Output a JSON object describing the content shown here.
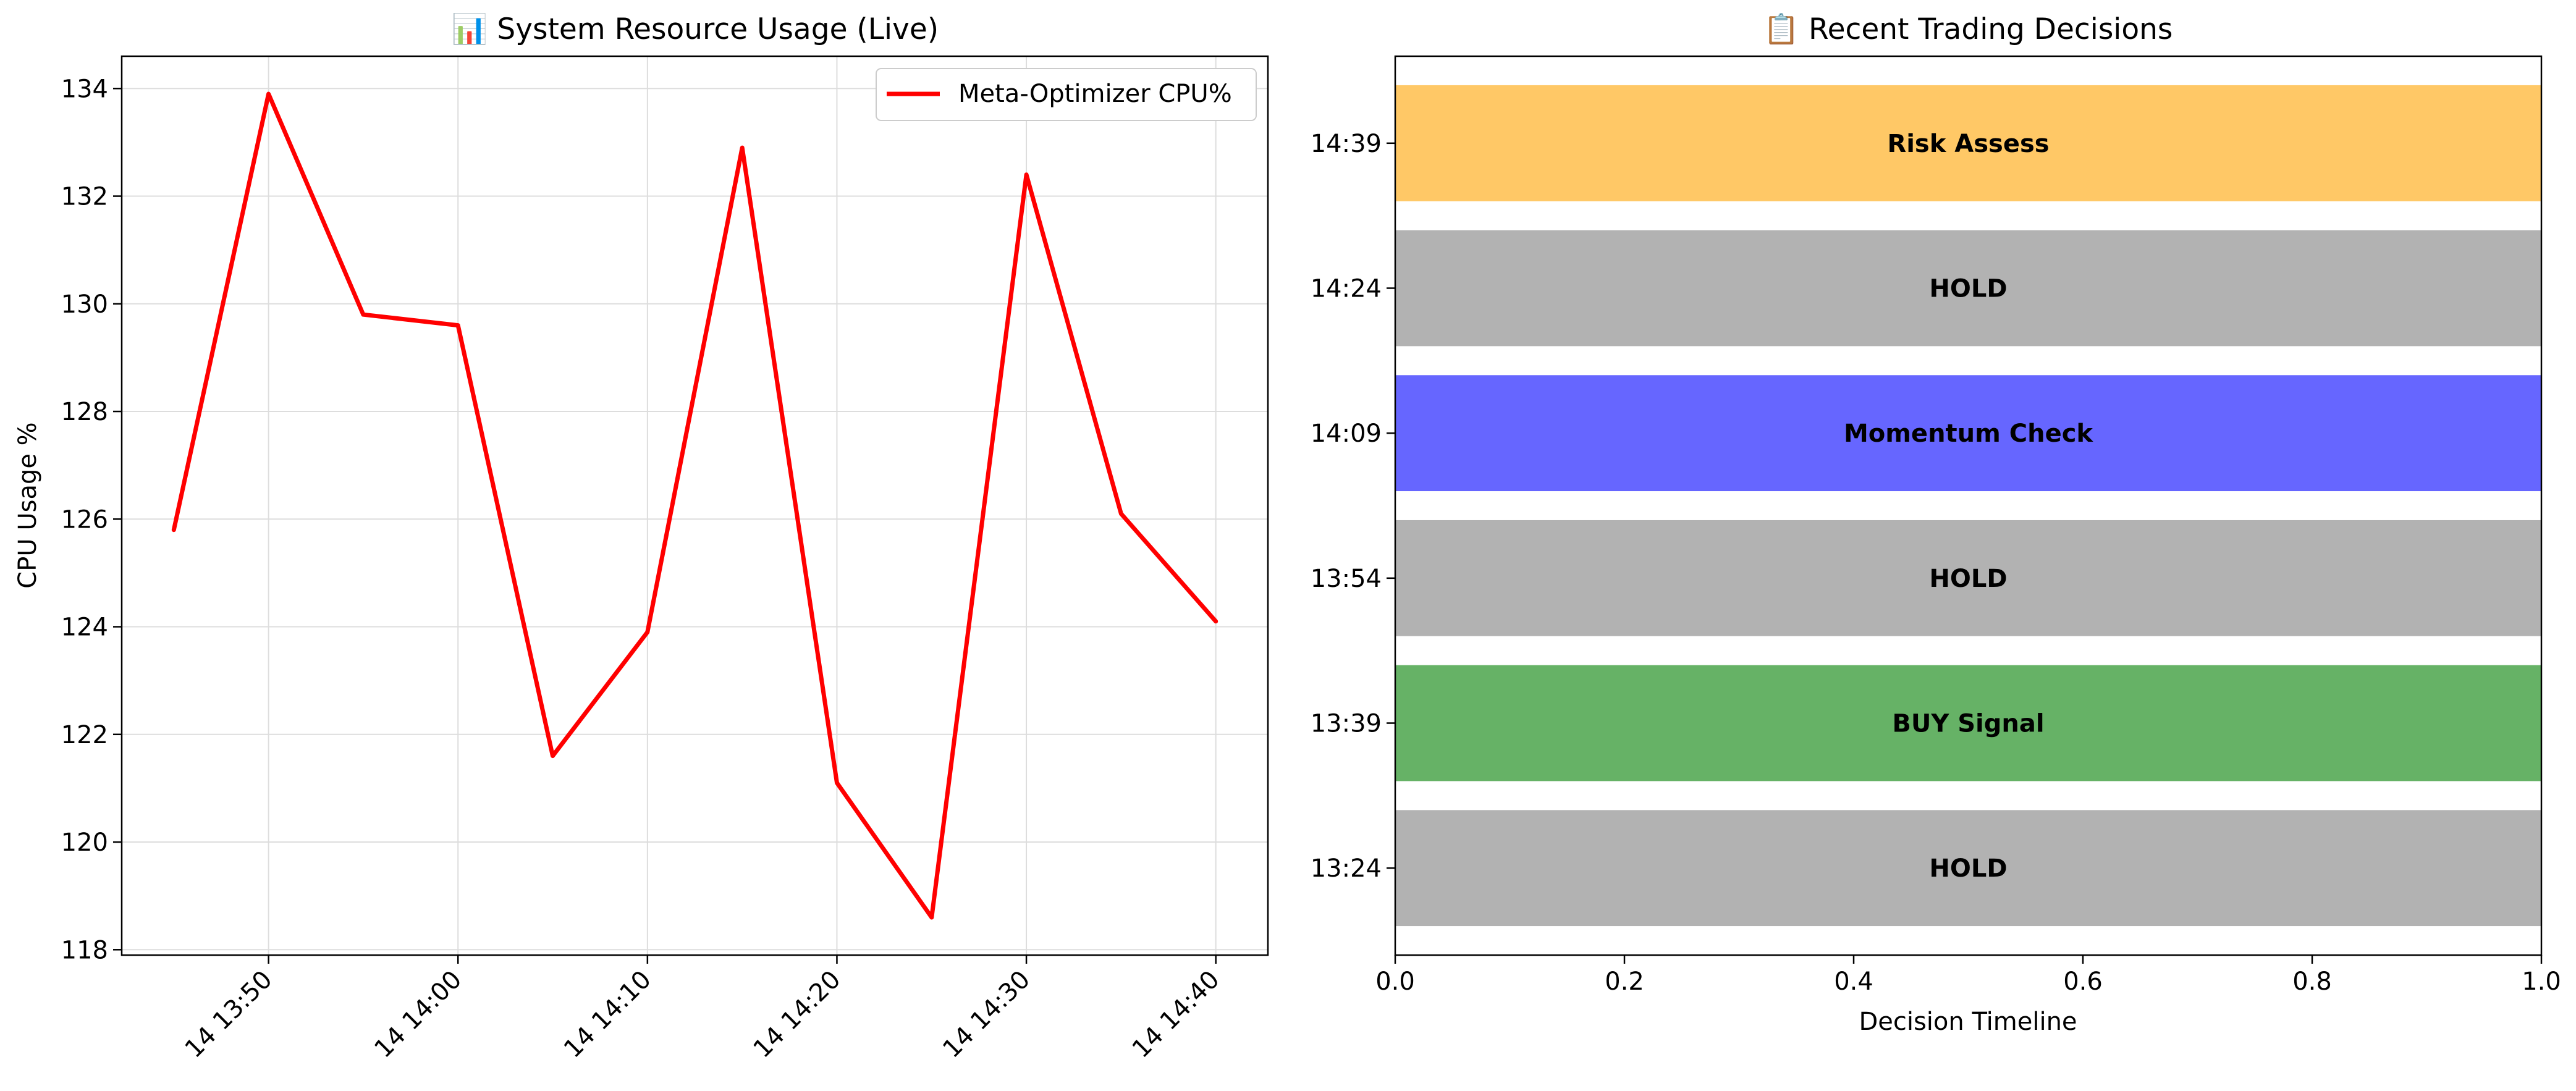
{
  "chart_data": [
    {
      "type": "line",
      "title": "📊 System Resource Usage (Live)",
      "xlabel": "",
      "ylabel": "CPU Usage %",
      "x": [
        "14 13:45",
        "14 13:50",
        "14 13:55",
        "14 14:00",
        "14 14:05",
        "14 14:10",
        "14 14:15",
        "14 14:20",
        "14 14:25",
        "14 14:30",
        "14 14:35",
        "14 14:40"
      ],
      "x_minutes": [
        0,
        5,
        10,
        15,
        20,
        25,
        30,
        35,
        40,
        45,
        50,
        55
      ],
      "xticks": [
        "14 13:50",
        "14 14:00",
        "14 14:10",
        "14 14:20",
        "14 14:30",
        "14 14:40"
      ],
      "xtick_minutes": [
        5,
        15,
        25,
        35,
        45,
        55
      ],
      "xlim_minutes": [
        -2.75,
        57.75
      ],
      "yticks": [
        118,
        120,
        122,
        124,
        126,
        128,
        130,
        132,
        134
      ],
      "ylim": [
        117.9,
        134.6
      ],
      "grid": true,
      "legend_position": "top-right",
      "series": [
        {
          "name": "Meta-Optimizer CPU%",
          "color": "#ff0000",
          "values": [
            125.8,
            133.9,
            129.8,
            129.6,
            121.6,
            123.9,
            132.9,
            121.1,
            118.6,
            132.4,
            126.1,
            124.1
          ]
        }
      ]
    },
    {
      "type": "bar",
      "orientation": "horizontal",
      "title": "📋 Recent Trading Decisions",
      "xlabel": "Decision Timeline",
      "ylabel": "",
      "xlim": [
        0,
        1
      ],
      "xticks": [
        0.0,
        0.2,
        0.4,
        0.6,
        0.8,
        1.0
      ],
      "xtick_labels": [
        "0.0",
        "0.2",
        "0.4",
        "0.6",
        "0.8",
        "1.0"
      ],
      "grid": false,
      "categories": [
        "13:24",
        "13:39",
        "13:54",
        "14:09",
        "14:24",
        "14:39"
      ],
      "values": [
        1,
        1,
        1,
        1,
        1,
        1
      ],
      "labels": [
        "HOLD",
        "BUY Signal",
        "HOLD",
        "Momentum Check",
        "HOLD",
        "Risk Assess"
      ],
      "colors": [
        "#b2b2b2",
        "#66b266",
        "#b2b2b2",
        "#6666ff",
        "#b2b2b2",
        "#ffc866"
      ]
    }
  ],
  "colors": {
    "axis": "#000000",
    "grid": "#dddddd",
    "background": "#ffffff"
  }
}
